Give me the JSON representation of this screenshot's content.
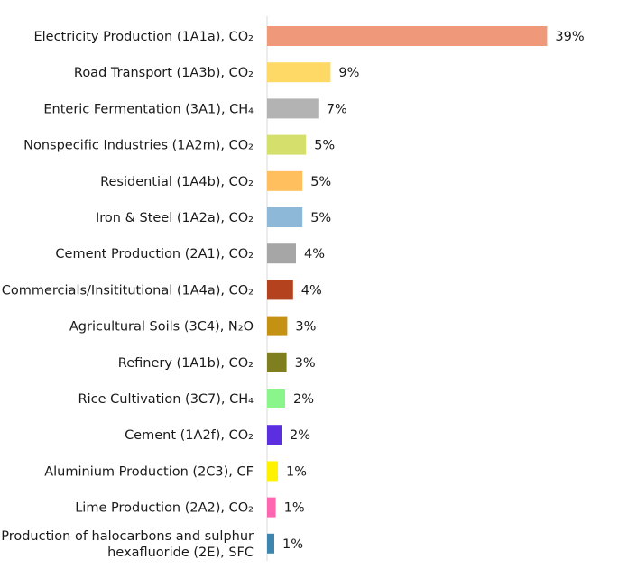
{
  "chart_data": {
    "type": "bar",
    "orientation": "horizontal",
    "title": "",
    "xlabel": "",
    "ylabel": "",
    "grid": false,
    "legend": "none",
    "value_suffix": "%",
    "xlim": [
      0,
      40
    ],
    "categories": [
      [
        "Electricity Production (1A1a), CO₂"
      ],
      [
        "Road Transport (1A3b), CO₂"
      ],
      [
        "Enteric Fermentation (3A1), CH₄"
      ],
      [
        "Nonspecific Industries (1A2m), CO₂"
      ],
      [
        "Residential (1A4b), CO₂"
      ],
      [
        "Iron & Steel (1A2a), CO₂"
      ],
      [
        "Cement Production (2A1), CO₂"
      ],
      [
        "Commercials/Insititutional (1A4a), CO₂"
      ],
      [
        "Agricultural Soils (3C4), N₂O"
      ],
      [
        "Refinery (1A1b), CO₂"
      ],
      [
        "Rice Cultivation (3C7), CH₄"
      ],
      [
        "Cement (1A2f), CO₂"
      ],
      [
        "Aluminium Production (2C3), CF"
      ],
      [
        "Lime Production (2A2), CO₂"
      ],
      [
        "Production of halocarbons and sulphur",
        "hexafluoride (2E), SFC"
      ]
    ],
    "values": [
      39,
      9,
      7,
      5,
      5,
      5,
      4,
      4,
      3,
      3,
      2,
      2,
      1,
      1,
      1
    ],
    "bar_values_precise": [
      38.8,
      8.8,
      7.1,
      5.4,
      4.9,
      4.9,
      4.0,
      3.6,
      2.8,
      2.7,
      2.5,
      2.0,
      1.5,
      1.2,
      1.0
    ],
    "colors": [
      "#F0987A",
      "#FFD966",
      "#B3B3B3",
      "#D4E06B",
      "#FFBF5F",
      "#8DB8D8",
      "#A6A6A6",
      "#B5421E",
      "#C59112",
      "#7F7F1F",
      "#8AF58A",
      "#5B2FE0",
      "#FFF200",
      "#FF66B2",
      "#3E86B0"
    ]
  }
}
